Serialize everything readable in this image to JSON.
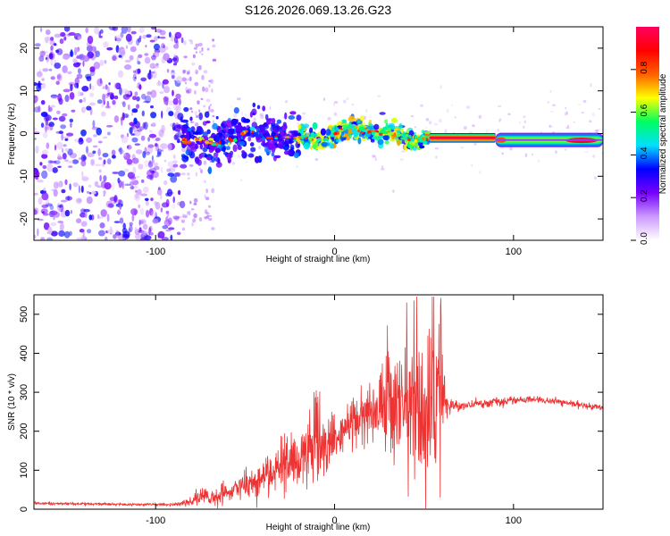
{
  "title": "S126.2026.069.13.26.G23",
  "chart_data": [
    {
      "type": "heatmap",
      "title": "S126.2026.069.13.26.G23",
      "xlabel": "Height of straight line (km)",
      "ylabel": "Frequency (Hz)",
      "xlim": [
        -168,
        150
      ],
      "ylim": [
        -25,
        25
      ],
      "x_ticks": [
        -100,
        0,
        100
      ],
      "x_tick_labels": [
        "-100",
        "0",
        "100"
      ],
      "y_ticks": [
        -20,
        -10,
        0,
        10,
        20
      ],
      "y_tick_labels": [
        "-20",
        "-10",
        "0",
        "10",
        "20"
      ],
      "colorbar": {
        "label": "Normalized spectral amplitude",
        "range": [
          0,
          1
        ],
        "ticks": [
          0.0,
          0.2,
          0.4,
          0.6,
          0.8
        ],
        "tick_labels": [
          "0.0",
          "0.2",
          "0.4",
          "0.6",
          "0.8"
        ],
        "colors": [
          "#ffffff",
          "#cc99ff",
          "#7700ff",
          "#0000ff",
          "#00e0ff",
          "#00ff60",
          "#ffff00",
          "#ff6000",
          "#ff0000",
          "#ff0060"
        ]
      },
      "regions": [
        {
          "x_range": [
            -168,
            -85
          ],
          "freq_center": 0,
          "freq_spread": 25,
          "amplitude": "0.05-0.35",
          "description": "scattered noise"
        },
        {
          "x_range": [
            -85,
            -20
          ],
          "freq_center": -1,
          "freq_spread": 4,
          "amplitude": "0.2-0.4"
        },
        {
          "x_range": [
            -20,
            53
          ],
          "freq_center": 0,
          "freq_spread": 2,
          "amplitude": "0.3-0.8"
        },
        {
          "x_range": [
            53,
            90
          ],
          "freq_center": -1,
          "freq_spread": 0.7,
          "amplitude": "0.9-1.0"
        },
        {
          "x_range": [
            90,
            150
          ],
          "freq_center": -1.5,
          "freq_spread": 1.2,
          "amplitude": "0.4-0.9"
        }
      ]
    },
    {
      "type": "line",
      "xlabel": "Height of straight line (km)",
      "ylabel": "SNR (10 * v/v)",
      "xlim": [
        -168,
        150
      ],
      "ylim": [
        0,
        550
      ],
      "x_ticks": [
        -100,
        0,
        100
      ],
      "x_tick_labels": [
        "-100",
        "0",
        "100"
      ],
      "y_ticks": [
        0,
        100,
        200,
        300,
        400,
        500
      ],
      "y_tick_labels": [
        "0",
        "100",
        "200",
        "300",
        "400",
        "500"
      ],
      "color": "#ee3333",
      "series": [
        {
          "name": "SNR",
          "x": [
            -168,
            -150,
            -130,
            -110,
            -90,
            -85,
            -80,
            -75,
            -70,
            -60,
            -50,
            -40,
            -35,
            -30,
            -25,
            -20,
            -15,
            -10,
            -5,
            0,
            5,
            10,
            15,
            20,
            25,
            30,
            35,
            40,
            45,
            50,
            55,
            60,
            63,
            70,
            80,
            90,
            100,
            110,
            120,
            130,
            140,
            150
          ],
          "values": [
            15,
            14,
            13,
            12,
            12,
            15,
            20,
            35,
            30,
            40,
            60,
            80,
            100,
            110,
            120,
            130,
            140,
            150,
            160,
            180,
            200,
            220,
            240,
            260,
            240,
            300,
            250,
            280,
            250,
            230,
            270,
            290,
            265,
            265,
            270,
            275,
            278,
            282,
            278,
            272,
            265,
            262
          ],
          "noise": [
            3,
            3,
            3,
            3,
            3,
            5,
            10,
            20,
            20,
            25,
            35,
            45,
            55,
            60,
            60,
            70,
            75,
            80,
            85,
            60,
            55,
            60,
            70,
            80,
            100,
            120,
            150,
            170,
            190,
            200,
            190,
            180,
            20,
            10,
            10,
            10,
            8,
            8,
            8,
            7,
            7,
            7
          ]
        }
      ]
    }
  ]
}
